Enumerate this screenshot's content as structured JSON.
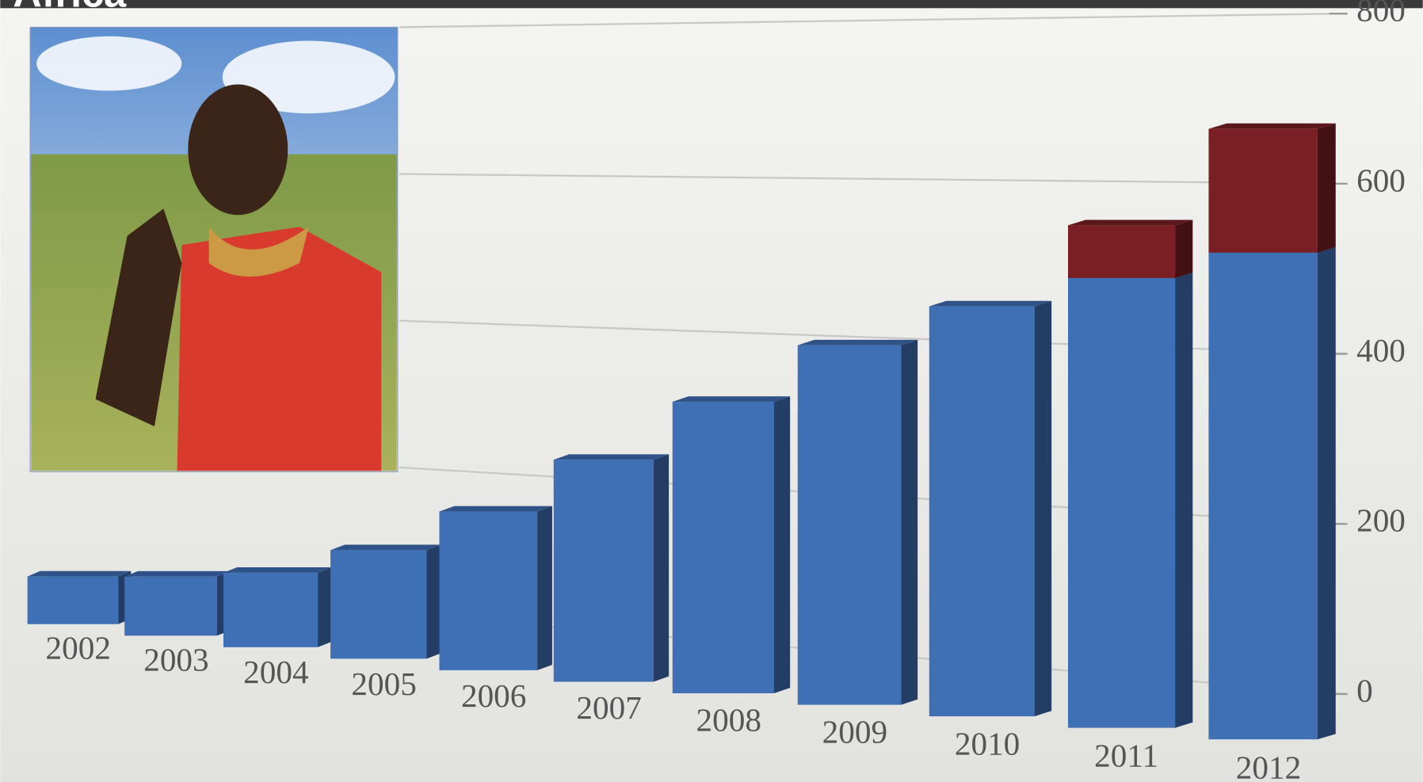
{
  "chart_data": {
    "type": "bar3d",
    "title": "Africa",
    "categories": [
      "2002",
      "2003",
      "2004",
      "2005",
      "2006",
      "2007",
      "2008",
      "2009",
      "2010",
      "2011",
      "2012"
    ],
    "series": [
      {
        "color": "#3f6fb5",
        "values": [
          70,
          85,
          105,
          150,
          215,
          295,
          380,
          460,
          515,
          555,
          590
        ]
      },
      {
        "color": "#7a1f24",
        "values": [
          0,
          0,
          0,
          0,
          0,
          0,
          0,
          0,
          0,
          65,
          150
        ]
      }
    ],
    "ylim": [
      0,
      800
    ],
    "yticks": [
      0,
      200,
      400,
      600,
      800
    ],
    "grid": true
  }
}
